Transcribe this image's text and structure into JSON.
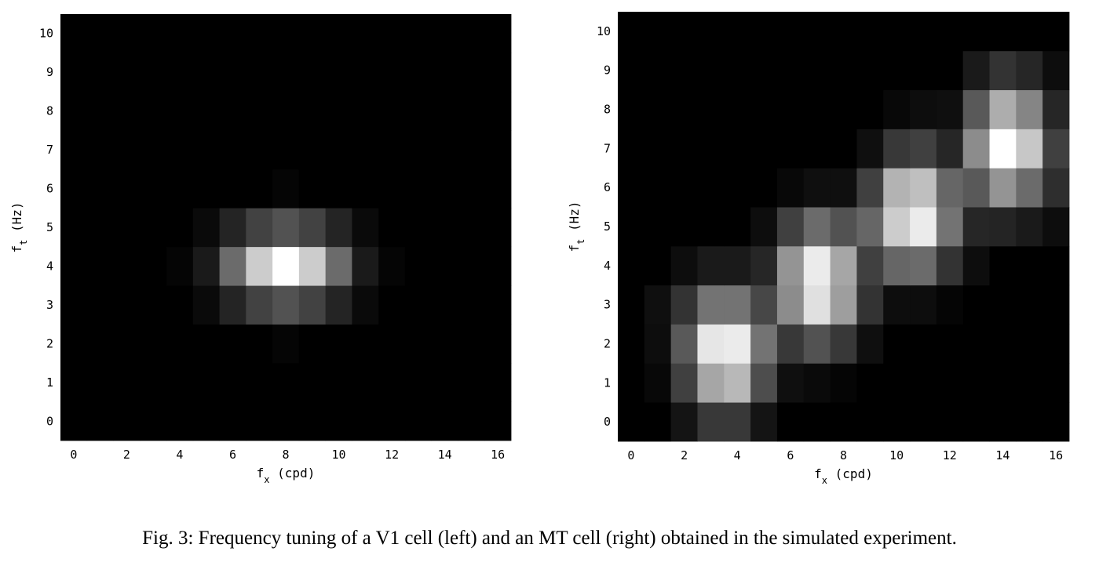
{
  "chart_data": [
    {
      "type": "heatmap",
      "panel": "left",
      "x": [
        0,
        1,
        2,
        3,
        4,
        5,
        6,
        7,
        8,
        9,
        10,
        11,
        12,
        13,
        14,
        15,
        16
      ],
      "y": [
        0,
        1,
        2,
        3,
        4,
        5,
        6,
        7,
        8,
        9,
        10
      ],
      "xlim": [
        -0.5,
        16.5
      ],
      "ylim": [
        -0.5,
        10.5
      ],
      "xticks": [
        "0",
        "2",
        "4",
        "6",
        "8",
        "10",
        "12",
        "14",
        "16"
      ],
      "yticks": [
        "0",
        "1",
        "2",
        "3",
        "4",
        "5",
        "6",
        "7",
        "8",
        "9",
        "10"
      ],
      "xlabel": {
        "base": "f",
        "sub": "x",
        "unit": "(cpd)"
      },
      "ylabel": {
        "base": "f",
        "sub": "t",
        "unit": "(Hz)"
      },
      "colormap": "gray",
      "grid": false,
      "values": [
        [
          0,
          0,
          0,
          0,
          0,
          0,
          0,
          0,
          0,
          0,
          0,
          0,
          0,
          0,
          0,
          0,
          0
        ],
        [
          0,
          0,
          0,
          0,
          0,
          0,
          0,
          0,
          0,
          0,
          0,
          0,
          0,
          0,
          0,
          0,
          0
        ],
        [
          0,
          0,
          0,
          0,
          0,
          0,
          0,
          0,
          0.02,
          0,
          0,
          0,
          0,
          0,
          0,
          0,
          0
        ],
        [
          0,
          0,
          0,
          0,
          0,
          0.04,
          0.14,
          0.26,
          0.32,
          0.26,
          0.14,
          0.04,
          0,
          0,
          0,
          0,
          0
        ],
        [
          0,
          0,
          0,
          0,
          0.02,
          0.1,
          0.42,
          0.8,
          1.0,
          0.8,
          0.42,
          0.1,
          0.02,
          0,
          0,
          0,
          0
        ],
        [
          0,
          0,
          0,
          0,
          0,
          0.04,
          0.14,
          0.26,
          0.32,
          0.26,
          0.14,
          0.04,
          0,
          0,
          0,
          0,
          0
        ],
        [
          0,
          0,
          0,
          0,
          0,
          0,
          0,
          0,
          0.02,
          0,
          0,
          0,
          0,
          0,
          0,
          0,
          0
        ],
        [
          0,
          0,
          0,
          0,
          0,
          0,
          0,
          0,
          0,
          0,
          0,
          0,
          0,
          0,
          0,
          0,
          0
        ],
        [
          0,
          0,
          0,
          0,
          0,
          0,
          0,
          0,
          0,
          0,
          0,
          0,
          0,
          0,
          0,
          0,
          0
        ],
        [
          0,
          0,
          0,
          0,
          0,
          0,
          0,
          0,
          0,
          0,
          0,
          0,
          0,
          0,
          0,
          0,
          0
        ],
        [
          0,
          0,
          0,
          0,
          0,
          0,
          0,
          0,
          0,
          0,
          0,
          0,
          0,
          0,
          0,
          0,
          0
        ]
      ]
    },
    {
      "type": "heatmap",
      "panel": "right",
      "x": [
        0,
        1,
        2,
        3,
        4,
        5,
        6,
        7,
        8,
        9,
        10,
        11,
        12,
        13,
        14,
        15,
        16
      ],
      "y": [
        0,
        1,
        2,
        3,
        4,
        5,
        6,
        7,
        8,
        9,
        10
      ],
      "xlim": [
        -0.5,
        16.5
      ],
      "ylim": [
        -0.5,
        10.5
      ],
      "xticks": [
        "0",
        "2",
        "4",
        "6",
        "8",
        "10",
        "12",
        "14",
        "16"
      ],
      "yticks": [
        "0",
        "1",
        "2",
        "3",
        "4",
        "5",
        "6",
        "7",
        "8",
        "9",
        "10"
      ],
      "xlabel": {
        "base": "f",
        "sub": "x",
        "unit": "(cpd)"
      },
      "ylabel": {
        "base": "f",
        "sub": "t",
        "unit": "(Hz)"
      },
      "colormap": "gray",
      "grid": false,
      "values": [
        [
          0,
          0,
          0.08,
          0.22,
          0.22,
          0.08,
          0,
          0,
          0,
          0,
          0,
          0,
          0,
          0,
          0,
          0,
          0
        ],
        [
          0,
          0.03,
          0.25,
          0.65,
          0.72,
          0.3,
          0.06,
          0.04,
          0.02,
          0,
          0,
          0,
          0,
          0,
          0,
          0,
          0
        ],
        [
          0,
          0.05,
          0.35,
          0.9,
          0.92,
          0.45,
          0.22,
          0.32,
          0.22,
          0.06,
          0,
          0,
          0,
          0,
          0,
          0,
          0
        ],
        [
          0,
          0.06,
          0.2,
          0.45,
          0.45,
          0.28,
          0.55,
          0.88,
          0.62,
          0.2,
          0.05,
          0.05,
          0.02,
          0,
          0,
          0,
          0
        ],
        [
          0,
          0,
          0.05,
          0.1,
          0.1,
          0.15,
          0.58,
          0.92,
          0.65,
          0.25,
          0.4,
          0.42,
          0.2,
          0.05,
          0,
          0,
          0
        ],
        [
          0,
          0,
          0,
          0,
          0,
          0.05,
          0.25,
          0.42,
          0.32,
          0.4,
          0.8,
          0.92,
          0.45,
          0.15,
          0.14,
          0.1,
          0.05
        ],
        [
          0,
          0,
          0,
          0,
          0,
          0,
          0.03,
          0.06,
          0.06,
          0.25,
          0.7,
          0.75,
          0.4,
          0.35,
          0.58,
          0.42,
          0.18
        ],
        [
          0,
          0,
          0,
          0,
          0,
          0,
          0,
          0,
          0,
          0.06,
          0.22,
          0.25,
          0.15,
          0.55,
          1.0,
          0.78,
          0.25
        ],
        [
          0,
          0,
          0,
          0,
          0,
          0,
          0,
          0,
          0,
          0,
          0.03,
          0.05,
          0.06,
          0.35,
          0.68,
          0.52,
          0.15
        ],
        [
          0,
          0,
          0,
          0,
          0,
          0,
          0,
          0,
          0,
          0,
          0,
          0,
          0,
          0.1,
          0.2,
          0.15,
          0.05
        ],
        [
          0,
          0,
          0,
          0,
          0,
          0,
          0,
          0,
          0,
          0,
          0,
          0,
          0,
          0,
          0,
          0,
          0
        ]
      ]
    }
  ],
  "caption": "Fig. 3: Frequency tuning of a V1 cell (left) and an MT cell (right) obtained in the simulated experiment."
}
